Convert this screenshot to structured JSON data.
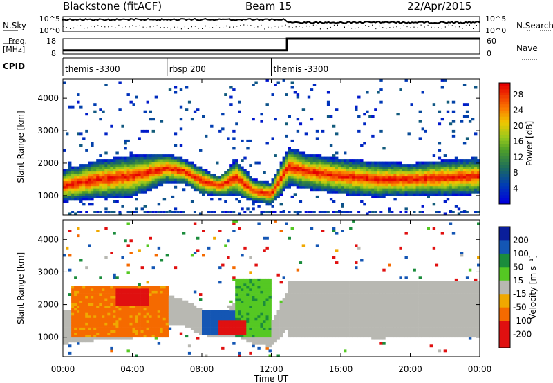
{
  "header": {
    "station": "Blackstone (fitACF)",
    "beam": "Beam 15",
    "date": "22/Apr/2015"
  },
  "panel_labels": {
    "nsky": "N.Sky",
    "nsearch": "N.Search",
    "freq_line1": "Freq.",
    "freq_line2": "[MHz]",
    "nave": "Nave",
    "cpid": "CPID"
  },
  "chart_data": [
    {
      "type": "line",
      "name": "noise",
      "series": [
        {
          "name": "N.Sky"
        },
        {
          "name": "N.Search"
        }
      ],
      "y_ticks_left": [
        "10^5",
        "10^0"
      ],
      "y_ticks_right": [
        "10^5",
        "10^0"
      ]
    },
    {
      "type": "line",
      "name": "frequency",
      "series": [
        {
          "name": "Freq.",
          "x": [
            0,
            12.9,
            12.9,
            24
          ],
          "values": [
            10.4,
            10.4,
            18,
            18
          ]
        },
        {
          "name": "Nave",
          "x": [
            0,
            12.9,
            12.9,
            24
          ],
          "values": [
            20,
            20,
            60,
            60
          ]
        }
      ],
      "y_ticks_left": [
        "18",
        "8"
      ],
      "y_ticks_right": [
        "60",
        "0"
      ],
      "ylim_left": [
        8,
        18
      ],
      "ylim_right": [
        0,
        60
      ]
    },
    {
      "type": "table",
      "name": "cpid",
      "segments": [
        {
          "label": "themis -3300",
          "start": 0,
          "end": 6
        },
        {
          "label": "rbsp 200",
          "start": 6,
          "end": 12
        },
        {
          "label": "themis -3300",
          "start": 12,
          "end": 24
        }
      ]
    },
    {
      "type": "heatmap",
      "name": "power",
      "ylabel": "Slant Range [km]",
      "ylim": [
        400,
        4600
      ],
      "yticks": [
        1000,
        2000,
        3000,
        4000
      ],
      "xlim": [
        0,
        24
      ],
      "colorbar": {
        "label": "Power [dB]",
        "ticks": [
          4,
          8,
          12,
          16,
          20,
          24,
          28
        ],
        "range": [
          0,
          31
        ]
      },
      "backscatter_band": [
        {
          "x": 0,
          "center": 1300,
          "halfwidth": 500
        },
        {
          "x": 2,
          "center": 1500,
          "halfwidth": 600
        },
        {
          "x": 4,
          "center": 1600,
          "halfwidth": 650
        },
        {
          "x": 6,
          "center": 1850,
          "halfwidth": 450
        },
        {
          "x": 7,
          "center": 1750,
          "halfwidth": 400
        },
        {
          "x": 8,
          "center": 1450,
          "halfwidth": 400
        },
        {
          "x": 9,
          "center": 1300,
          "halfwidth": 300
        },
        {
          "x": 10,
          "center": 1550,
          "halfwidth": 550
        },
        {
          "x": 11,
          "center": 1150,
          "halfwidth": 350
        },
        {
          "x": 12,
          "center": 1050,
          "halfwidth": 350
        },
        {
          "x": 13,
          "center": 1900,
          "halfwidth": 600
        },
        {
          "x": 14,
          "center": 1750,
          "halfwidth": 550
        },
        {
          "x": 16,
          "center": 1600,
          "halfwidth": 550
        },
        {
          "x": 18,
          "center": 1500,
          "halfwidth": 550
        },
        {
          "x": 20,
          "center": 1500,
          "halfwidth": 500
        },
        {
          "x": 22,
          "center": 1550,
          "halfwidth": 550
        },
        {
          "x": 24,
          "center": 1600,
          "halfwidth": 550
        }
      ]
    },
    {
      "type": "heatmap",
      "name": "velocity",
      "ylabel": "Slant Range [km]",
      "xlabel": "Time UT",
      "ylim": [
        400,
        4600
      ],
      "yticks": [
        1000,
        2000,
        3000,
        4000
      ],
      "xlim": [
        0,
        24
      ],
      "xticks": [
        "00:00",
        "04:00",
        "08:00",
        "12:00",
        "16:00",
        "20:00",
        "00:00"
      ],
      "colorbar": {
        "label": "Velocity [m s⁻¹]",
        "ticks": [
          "200",
          "100",
          "50",
          "15",
          "-15",
          "-50",
          "-100",
          "-200"
        ]
      },
      "features": [
        {
          "x": [
            0.5,
            6
          ],
          "range": [
            1000,
            2600
          ],
          "velocity": -60
        },
        {
          "x": [
            3,
            5
          ],
          "range": [
            2000,
            2500
          ],
          "velocity": -150
        },
        {
          "x": [
            8,
            10.5
          ],
          "range": [
            1100,
            1800
          ],
          "velocity": 150
        },
        {
          "x": [
            10,
            12
          ],
          "range": [
            1000,
            2800
          ],
          "velocity": 40
        },
        {
          "x": [
            9,
            10.5
          ],
          "range": [
            1100,
            1500
          ],
          "velocity": -120
        },
        {
          "x": [
            13,
            24
          ],
          "range": [
            1000,
            2700
          ],
          "velocity": 0
        }
      ]
    }
  ]
}
